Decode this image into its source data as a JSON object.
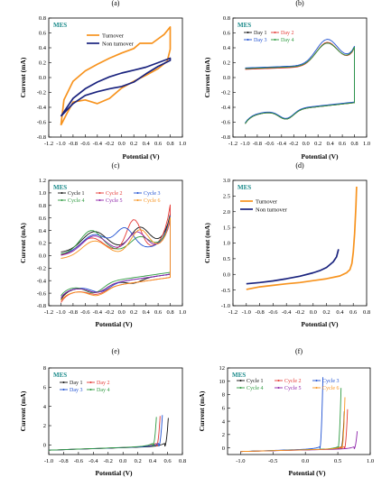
{
  "chart_data": [
    {
      "panel": "(a)",
      "type": "line",
      "tag": "MES",
      "xlabel": "Potential (V)",
      "ylabel": "Current (mA)",
      "xlim": [
        -1.2,
        1.0
      ],
      "ylim": [
        -0.8,
        0.8
      ],
      "xticks": [
        "-1.2",
        "-1.0",
        "-0.8",
        "-0.6",
        "-0.4",
        "-0.2",
        "0.0",
        "0.2",
        "0.4",
        "0.6",
        "0.8",
        "1.0"
      ],
      "yticks": [
        "-0.8",
        "-0.6",
        "-0.4",
        "-0.2",
        "0.0",
        "0.2",
        "0.4",
        "0.6",
        "0.8"
      ],
      "legend": "top-right",
      "series": [
        {
          "name": "Turnover",
          "color": "#f7931e",
          "x": [
            -1.0,
            -0.9,
            -0.8,
            -0.6,
            -0.4,
            -0.2,
            0.0,
            0.2,
            0.4,
            0.6,
            0.75,
            0.8,
            0.8,
            0.7,
            0.5,
            0.3,
            0.2,
            0.0,
            -0.2,
            -0.4,
            -0.6,
            -0.8,
            -0.95,
            -1.0
          ],
          "y": [
            -0.64,
            -0.48,
            -0.33,
            -0.3,
            -0.35,
            -0.28,
            -0.14,
            -0.05,
            0.03,
            0.12,
            0.22,
            0.38,
            0.68,
            0.58,
            0.46,
            0.46,
            0.39,
            0.33,
            0.26,
            0.18,
            0.09,
            -0.05,
            -0.3,
            -0.64
          ]
        },
        {
          "name": "Non turnover",
          "color": "#1a237e",
          "x": [
            -1.0,
            -0.8,
            -0.6,
            -0.4,
            -0.2,
            0.0,
            0.2,
            0.4,
            0.6,
            0.8,
            0.8,
            0.6,
            0.4,
            0.2,
            0.0,
            -0.2,
            -0.4,
            -0.6,
            -0.8,
            -1.0
          ],
          "y": [
            -0.52,
            -0.35,
            -0.24,
            -0.19,
            -0.15,
            -0.12,
            -0.06,
            0.05,
            0.15,
            0.23,
            0.26,
            0.2,
            0.14,
            0.1,
            0.06,
            0.01,
            -0.06,
            -0.15,
            -0.28,
            -0.52
          ]
        }
      ]
    },
    {
      "panel": "(b)",
      "type": "line",
      "tag": "MES",
      "xlabel": "Potential (V)",
      "ylabel": "Current (mA)",
      "xlim": [
        -1.2,
        1.0
      ],
      "ylim": [
        -0.8,
        0.8
      ],
      "xticks": [
        "-1.2",
        "-1.0",
        "-0.8",
        "-0.6",
        "-0.4",
        "-0.2",
        "0.0",
        "0.2",
        "0.4",
        "0.6",
        "0.8",
        "1.0"
      ],
      "yticks": [
        "-0.8",
        "-0.6",
        "-0.4",
        "-0.2",
        "0.0",
        "0.2",
        "0.4",
        "0.6",
        "0.8"
      ],
      "legend": "top-left",
      "series": [
        {
          "name": "Day 1",
          "color": "#111111"
        },
        {
          "name": "Day 2",
          "color": "#e53935"
        },
        {
          "name": "Day 3",
          "color": "#1e50d2"
        },
        {
          "name": "Day 4",
          "color": "#2e9a40"
        }
      ]
    },
    {
      "panel": "(c)",
      "type": "line",
      "tag": "MES",
      "xlabel": "Potential (V)",
      "ylabel": "Current (mA)",
      "xlim": [
        -1.2,
        1.0
      ],
      "ylim": [
        -0.8,
        1.2
      ],
      "xticks": [
        "-1.2",
        "-1.0",
        "-0.8",
        "-0.6",
        "-0.4",
        "-0.2",
        "0.0",
        "0.2",
        "0.4",
        "0.6",
        "0.8",
        "1.0"
      ],
      "yticks": [
        "-0.8",
        "-0.6",
        "-0.4",
        "-0.2",
        "0.0",
        "0.2",
        "0.4",
        "0.6",
        "0.8",
        "1.0",
        "1.2"
      ],
      "legend": "top",
      "series": [
        {
          "name": "Cycle 1",
          "color": "#111111"
        },
        {
          "name": "Cycle 2",
          "color": "#e53935"
        },
        {
          "name": "Cycle 3",
          "color": "#1e50d2"
        },
        {
          "name": "Cycle 4",
          "color": "#2e9a40"
        },
        {
          "name": "Cycle 5",
          "color": "#8e24aa"
        },
        {
          "name": "Cycle 6",
          "color": "#f7931e"
        }
      ]
    },
    {
      "panel": "(d)",
      "type": "line",
      "tag": "MES",
      "xlabel": "Potential (V)",
      "ylabel": "Current (mA)",
      "xlim": [
        -1.2,
        0.8
      ],
      "ylim": [
        -1.0,
        3.0
      ],
      "xticks": [
        "-1.2",
        "-1.0",
        "-0.8",
        "-0.6",
        "-0.4",
        "-0.2",
        "0.0",
        "0.2",
        "0.4",
        "0.6",
        "0.8"
      ],
      "yticks": [
        "-1.0",
        "-0.5",
        "0.0",
        "0.5",
        "1.0",
        "1.5",
        "2.0",
        "2.5",
        "3.0"
      ],
      "legend": "top-left",
      "series": [
        {
          "name": "Turnover",
          "color": "#f7931e",
          "x": [
            -1.0,
            -0.8,
            -0.6,
            -0.4,
            -0.2,
            0.0,
            0.2,
            0.4,
            0.5,
            0.55,
            0.58,
            0.6,
            0.62,
            0.64,
            0.65
          ],
          "y": [
            -0.48,
            -0.4,
            -0.35,
            -0.3,
            -0.26,
            -0.2,
            -0.14,
            -0.05,
            0.05,
            0.15,
            0.35,
            0.7,
            1.3,
            2.2,
            2.8
          ]
        },
        {
          "name": "Non turnover",
          "color": "#1a237e",
          "x": [
            -1.0,
            -0.8,
            -0.6,
            -0.4,
            -0.2,
            0.0,
            0.1,
            0.2,
            0.3,
            0.35,
            0.38
          ],
          "y": [
            -0.3,
            -0.26,
            -0.21,
            -0.14,
            -0.06,
            0.05,
            0.12,
            0.22,
            0.4,
            0.56,
            0.8
          ]
        }
      ]
    },
    {
      "panel": "(e)",
      "type": "line",
      "tag": "MES",
      "xlabel": "Potential (V)",
      "ylabel": "Current (mA)",
      "xlim": [
        -1.0,
        0.8
      ],
      "ylim": [
        -1,
        8
      ],
      "xticks": [
        "-1.0",
        "-0.8",
        "-0.6",
        "-0.4",
        "-0.2",
        "0.0",
        "0.2",
        "0.4",
        "0.6",
        "0.8"
      ],
      "yticks": [
        "0",
        "2",
        "4",
        "6",
        "8"
      ],
      "legend": "top-left",
      "series": [
        {
          "name": "Day 1",
          "color": "#111111"
        },
        {
          "name": "Day 2",
          "color": "#e53935"
        },
        {
          "name": "Day 3",
          "color": "#1e50d2"
        },
        {
          "name": "Day 4",
          "color": "#2e9a40"
        }
      ]
    },
    {
      "panel": "(f)",
      "type": "line",
      "tag": "MES",
      "xlabel": "Potential (V)",
      "ylabel": "Current (mA)",
      "xlim": [
        -1.2,
        1.0
      ],
      "ylim": [
        -1,
        12
      ],
      "xticks": [
        "-1.0",
        "-0.5",
        "0.0",
        "0.5",
        "1.0"
      ],
      "yticks": [
        "0",
        "2",
        "4",
        "6",
        "8",
        "10",
        "12"
      ],
      "legend": "top",
      "series": [
        {
          "name": "Cycle 1",
          "color": "#111111"
        },
        {
          "name": "Cycle 2",
          "color": "#e53935"
        },
        {
          "name": "Cycle 3",
          "color": "#1e50d2"
        },
        {
          "name": "Cycle 4",
          "color": "#2e9a40"
        },
        {
          "name": "Cycle 5",
          "color": "#8e24aa"
        },
        {
          "name": "Cycle 6",
          "color": "#f7931e"
        }
      ]
    }
  ]
}
